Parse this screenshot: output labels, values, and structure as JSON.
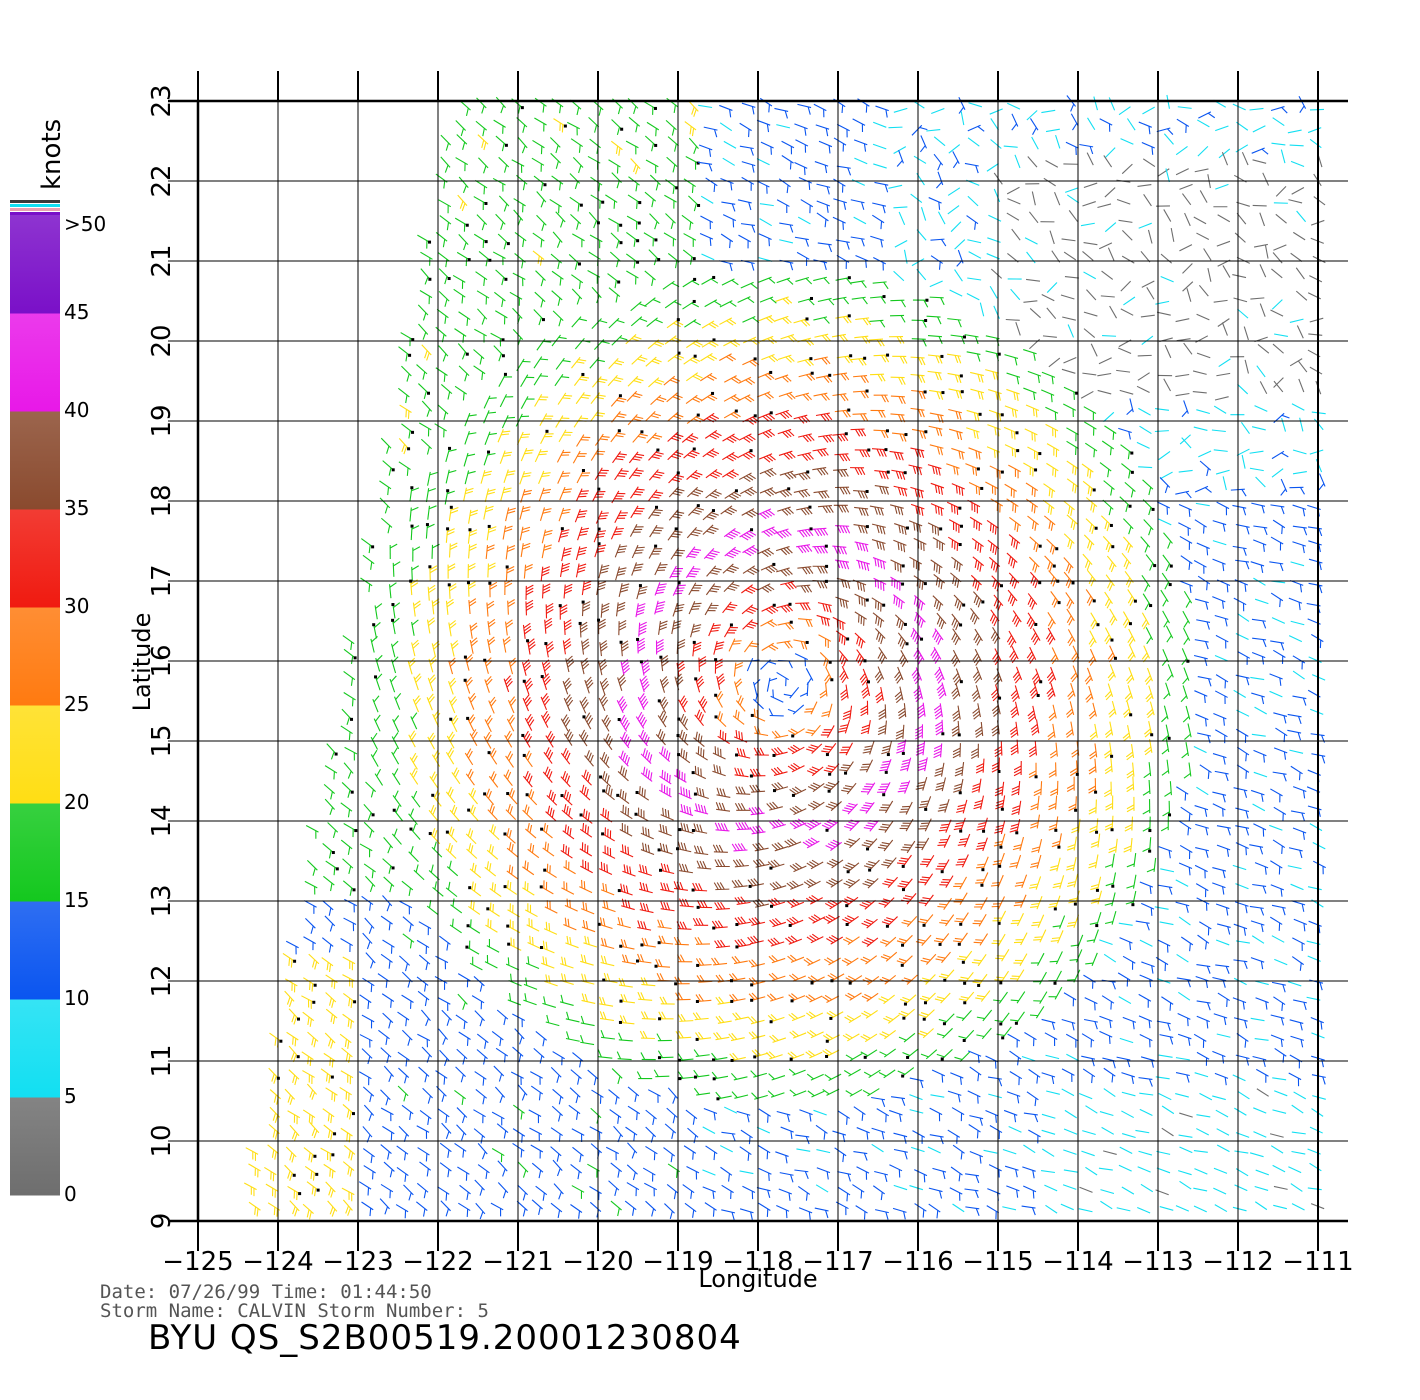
{
  "plot": {
    "xlabel": "Longitude",
    "ylabel": "Latitude",
    "x_ticks": [
      -125,
      -124,
      -123,
      -122,
      -121,
      -120,
      -119,
      -118,
      -117,
      -116,
      -115,
      -114,
      -113,
      -112,
      -111
    ],
    "y_ticks": [
      9,
      10,
      11,
      12,
      13,
      14,
      15,
      16,
      17,
      18,
      19,
      20,
      21,
      22,
      23
    ],
    "xlim": [
      -125,
      -110.5
    ],
    "ylim": [
      9,
      23
    ],
    "grid": true
  },
  "colorbar": {
    "unit_label": "knots",
    "labels": [
      ">50",
      "45",
      "40",
      "35",
      "30",
      "25",
      "20",
      "15",
      "10",
      "5",
      "0"
    ],
    "bins": [
      {
        "from": 0,
        "to": 5,
        "color": "#6e6e6e"
      },
      {
        "from": 5,
        "to": 10,
        "color": "#12dff2"
      },
      {
        "from": 10,
        "to": 15,
        "color": "#0a55f0"
      },
      {
        "from": 15,
        "to": 20,
        "color": "#14c81e"
      },
      {
        "from": 20,
        "to": 25,
        "color": "#ffde14"
      },
      {
        "from": 25,
        "to": 30,
        "color": "#ff7a10"
      },
      {
        "from": 30,
        "to": 35,
        "color": "#f01a10"
      },
      {
        "from": 35,
        "to": 40,
        "color": "#8a4a2e"
      },
      {
        "from": 40,
        "to": 45,
        "color": "#e818e8"
      },
      {
        "from": 45,
        "to": 50,
        "color": "#7a10c8"
      }
    ]
  },
  "storm_center": {
    "lon": -117.7,
    "lat": 15.7
  },
  "footer": {
    "date_line": "Date: 07/26/99   Time: 01:44:50",
    "storm_line": "Storm Name: CALVIN   Storm Number: 5",
    "title": "BYU QS_S2B00519.20001230804"
  }
}
